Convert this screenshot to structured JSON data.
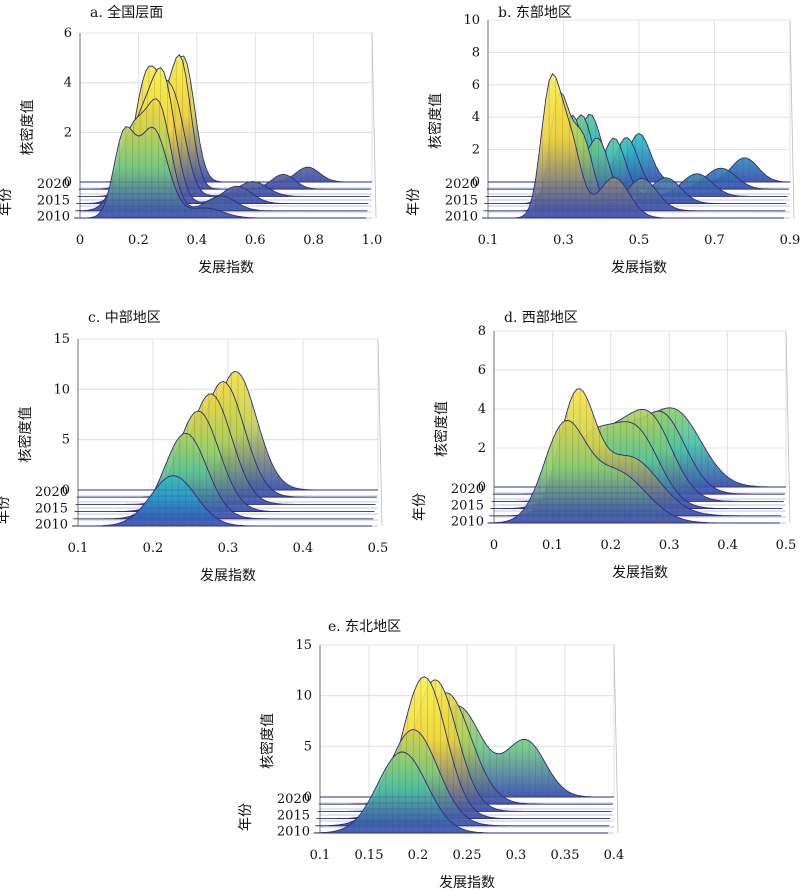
{
  "chart_data": [
    {
      "type": "area",
      "title": "a. 全国层面",
      "xlabel": "发展指数",
      "zlabel": "核密度值",
      "ylabel": "年份",
      "x_ticks": [
        "0",
        "0.2",
        "0.4",
        "0.6",
        "0.8",
        "1.0"
      ],
      "xlim": [
        0,
        1.0
      ],
      "z_ticks": [
        "0",
        "2",
        "4",
        "6"
      ],
      "zlim": [
        0,
        6
      ],
      "year_ticks": [
        "2020",
        "2015",
        "2010"
      ],
      "series": [
        {
          "year": 2010,
          "peaks": [
            [
              0.17,
              3.1,
              0.035
            ],
            [
              0.27,
              3.6,
              0.05
            ],
            [
              0.45,
              0.4,
              0.06
            ]
          ]
        },
        {
          "year": 2012,
          "peaks": [
            [
              0.2,
              3.3,
              0.05
            ],
            [
              0.29,
              3.7,
              0.04
            ],
            [
              0.5,
              0.6,
              0.05
            ]
          ]
        },
        {
          "year": 2014,
          "peaks": [
            [
              0.22,
              3.2,
              0.05
            ],
            [
              0.3,
              4.4,
              0.04
            ],
            [
              0.55,
              0.7,
              0.05
            ]
          ]
        },
        {
          "year": 2016,
          "peaks": [
            [
              0.24,
              4.9,
              0.045
            ],
            [
              0.33,
              3.6,
              0.04
            ],
            [
              0.6,
              0.6,
              0.05
            ]
          ]
        },
        {
          "year": 2018,
          "peaks": [
            [
              0.25,
              4.0,
              0.05
            ],
            [
              0.35,
              4.8,
              0.035
            ],
            [
              0.7,
              0.6,
              0.04
            ]
          ]
        },
        {
          "year": 2020,
          "peaks": [
            [
              0.27,
              3.5,
              0.05
            ],
            [
              0.36,
              4.3,
              0.035
            ],
            [
              0.78,
              0.6,
              0.04
            ]
          ]
        }
      ]
    },
    {
      "type": "area",
      "title": "b. 东部地区",
      "xlabel": "发展指数",
      "zlabel": "核密度值",
      "ylabel": "年份",
      "x_ticks": [
        "0.1",
        "0.3",
        "0.5",
        "0.7",
        "0.9"
      ],
      "xlim": [
        0.1,
        0.9
      ],
      "z_ticks": [
        "0",
        "2",
        "4",
        "6",
        "8",
        "10"
      ],
      "zlim": [
        0,
        10
      ],
      "year_ticks": [
        "2020",
        "2015",
        "2010"
      ],
      "series": [
        {
          "year": 2010,
          "peaks": [
            [
              0.28,
              7.4,
              0.025
            ],
            [
              0.33,
              5.0,
              0.03
            ],
            [
              0.45,
              2.5,
              0.04
            ]
          ]
        },
        {
          "year": 2012,
          "peaks": [
            [
              0.3,
              6.6,
              0.025
            ],
            [
              0.36,
              4.6,
              0.03
            ],
            [
              0.52,
              2.0,
              0.04
            ]
          ]
        },
        {
          "year": 2014,
          "peaks": [
            [
              0.31,
              5.6,
              0.03
            ],
            [
              0.4,
              4.0,
              0.03
            ],
            [
              0.58,
              1.6,
              0.04
            ]
          ]
        },
        {
          "year": 2016,
          "peaks": [
            [
              0.33,
              5.0,
              0.03
            ],
            [
              0.44,
              3.6,
              0.03
            ],
            [
              0.66,
              1.4,
              0.04
            ]
          ]
        },
        {
          "year": 2018,
          "peaks": [
            [
              0.35,
              4.6,
              0.03
            ],
            [
              0.47,
              3.2,
              0.03
            ],
            [
              0.72,
              1.3,
              0.04
            ]
          ]
        },
        {
          "year": 2020,
          "peaks": [
            [
              0.37,
              4.2,
              0.03
            ],
            [
              0.5,
              3.0,
              0.03
            ],
            [
              0.78,
              1.5,
              0.035
            ]
          ]
        }
      ]
    },
    {
      "type": "area",
      "title": "c. 中部地区",
      "xlabel": "发展指数",
      "zlabel": "核密度值",
      "ylabel": "年份",
      "x_ticks": [
        "0.1",
        "0.2",
        "0.3",
        "0.4",
        "0.5"
      ],
      "xlim": [
        0.1,
        0.5
      ],
      "z_ticks": [
        "0",
        "5",
        "10",
        "15"
      ],
      "zlim": [
        0,
        15
      ],
      "year_ticks": [
        "2020",
        "2015",
        "2010"
      ],
      "series": [
        {
          "year": 2010,
          "peaks": [
            [
              0.235,
              5.0,
              0.03
            ]
          ]
        },
        {
          "year": 2012,
          "peaks": [
            [
              0.25,
              8.5,
              0.028
            ]
          ]
        },
        {
          "year": 2014,
          "peaks": [
            [
              0.265,
              10.0,
              0.028
            ]
          ]
        },
        {
          "year": 2016,
          "peaks": [
            [
              0.28,
              11.0,
              0.028
            ]
          ]
        },
        {
          "year": 2018,
          "peaks": [
            [
              0.295,
              11.5,
              0.028
            ]
          ]
        },
        {
          "year": 2020,
          "peaks": [
            [
              0.31,
              11.8,
              0.028
            ]
          ]
        }
      ]
    },
    {
      "type": "area",
      "title": "d. 西部地区",
      "xlabel": "发展指数",
      "zlabel": "核密度值",
      "ylabel": "年份",
      "x_ticks": [
        "0",
        "0.1",
        "0.2",
        "0.3",
        "0.4",
        "0.5"
      ],
      "xlim": [
        0,
        0.5
      ],
      "z_ticks": [
        "0",
        "2",
        "4",
        "6",
        "8"
      ],
      "zlim": [
        0,
        8
      ],
      "year_ticks": [
        "2020",
        "2015",
        "2010"
      ],
      "series": [
        {
          "year": 2010,
          "peaks": [
            [
              0.13,
              4.7,
              0.035
            ],
            [
              0.22,
              2.6,
              0.05
            ]
          ]
        },
        {
          "year": 2012,
          "peaks": [
            [
              0.15,
              5.9,
              0.03
            ],
            [
              0.24,
              3.0,
              0.05
            ]
          ]
        },
        {
          "year": 2014,
          "peaks": [
            [
              0.17,
              3.4,
              0.04
            ],
            [
              0.25,
              3.8,
              0.04
            ]
          ]
        },
        {
          "year": 2016,
          "peaks": [
            [
              0.19,
              3.0,
              0.04
            ],
            [
              0.27,
              4.2,
              0.04
            ]
          ]
        },
        {
          "year": 2018,
          "peaks": [
            [
              0.2,
              2.8,
              0.04
            ],
            [
              0.29,
              4.0,
              0.04
            ]
          ]
        },
        {
          "year": 2020,
          "peaks": [
            [
              0.22,
              2.6,
              0.04
            ],
            [
              0.31,
              3.8,
              0.045
            ]
          ]
        }
      ]
    },
    {
      "type": "area",
      "title": "e. 东北地区",
      "xlabel": "发展指数",
      "zlabel": "核密度值",
      "ylabel": "年份",
      "x_ticks": [
        "0.1",
        "0.15",
        "0.2",
        "0.25",
        "0.3",
        "0.35",
        "0.4"
      ],
      "xlim": [
        0.1,
        0.4
      ],
      "z_ticks": [
        "0",
        "5",
        "10",
        "15"
      ],
      "zlim": [
        0,
        15
      ],
      "year_ticks": [
        "2020",
        "2015",
        "2010"
      ],
      "series": [
        {
          "year": 2010,
          "peaks": [
            [
              0.19,
              8.0,
              0.025
            ]
          ]
        },
        {
          "year": 2012,
          "peaks": [
            [
              0.2,
              9.5,
              0.025
            ]
          ]
        },
        {
          "year": 2014,
          "peaks": [
            [
              0.21,
              14.0,
              0.022
            ]
          ]
        },
        {
          "year": 2016,
          "peaks": [
            [
              0.22,
              13.0,
              0.022
            ]
          ]
        },
        {
          "year": 2018,
          "peaks": [
            [
              0.23,
              11.0,
              0.025
            ]
          ]
        },
        {
          "year": 2020,
          "peaks": [
            [
              0.24,
              9.0,
              0.025
            ],
            [
              0.31,
              5.5,
              0.02
            ]
          ]
        }
      ]
    }
  ]
}
